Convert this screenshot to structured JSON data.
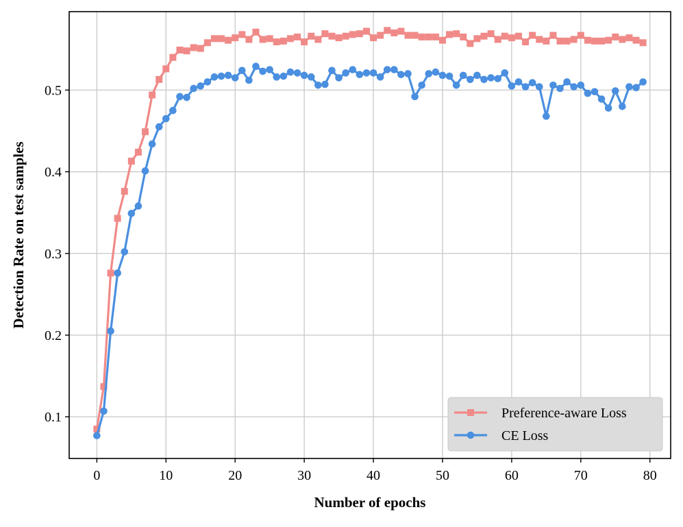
{
  "chart_data": {
    "type": "line",
    "title": "",
    "xlabel": "Number of epochs",
    "ylabel": "Detection Rate on test samples",
    "xlim": [
      -4,
      83
    ],
    "ylim": [
      0.049,
      0.596
    ],
    "x_ticks": [
      0,
      10,
      20,
      30,
      40,
      50,
      60,
      70,
      80
    ],
    "x_tick_labels": [
      "0",
      "10",
      "20",
      "30",
      "40",
      "50",
      "60",
      "70",
      "80"
    ],
    "y_ticks": [
      0.1,
      0.2,
      0.3,
      0.4,
      0.5
    ],
    "y_tick_labels": [
      "0.1",
      "0.2",
      "0.3",
      "0.4",
      "0.5"
    ],
    "grid": true,
    "legend_position": "bottom-right",
    "x": [
      0,
      1,
      2,
      3,
      4,
      5,
      6,
      7,
      8,
      9,
      10,
      11,
      12,
      13,
      14,
      15,
      16,
      17,
      18,
      19,
      20,
      21,
      22,
      23,
      24,
      25,
      26,
      27,
      28,
      29,
      30,
      31,
      32,
      33,
      34,
      35,
      36,
      37,
      38,
      39,
      40,
      41,
      42,
      43,
      44,
      45,
      46,
      47,
      48,
      49,
      50,
      51,
      52,
      53,
      54,
      55,
      56,
      57,
      58,
      59,
      60,
      61,
      62,
      63,
      64,
      65,
      66,
      67,
      68,
      69,
      70,
      71,
      72,
      73,
      74,
      75,
      76,
      77,
      78,
      79
    ],
    "series": [
      {
        "name": "Preference-aware Loss",
        "color": "#f08a88",
        "marker": "square",
        "values": [
          0.085,
          0.137,
          0.276,
          0.343,
          0.376,
          0.413,
          0.424,
          0.449,
          0.494,
          0.513,
          0.526,
          0.54,
          0.549,
          0.548,
          0.552,
          0.551,
          0.558,
          0.563,
          0.563,
          0.561,
          0.564,
          0.568,
          0.562,
          0.571,
          0.562,
          0.563,
          0.559,
          0.56,
          0.563,
          0.565,
          0.559,
          0.566,
          0.562,
          0.569,
          0.566,
          0.564,
          0.566,
          0.568,
          0.569,
          0.572,
          0.564,
          0.567,
          0.573,
          0.57,
          0.572,
          0.567,
          0.567,
          0.565,
          0.565,
          0.565,
          0.561,
          0.568,
          0.569,
          0.565,
          0.557,
          0.563,
          0.566,
          0.569,
          0.562,
          0.566,
          0.564,
          0.566,
          0.559,
          0.567,
          0.562,
          0.56,
          0.567,
          0.56,
          0.56,
          0.562,
          0.567,
          0.561,
          0.56,
          0.56,
          0.561,
          0.565,
          0.562,
          0.564,
          0.561,
          0.558
        ]
      },
      {
        "name": "CE Loss",
        "color": "#4a8fe0",
        "marker": "circle",
        "values": [
          0.077,
          0.107,
          0.205,
          0.276,
          0.302,
          0.349,
          0.358,
          0.401,
          0.434,
          0.455,
          0.465,
          0.475,
          0.492,
          0.491,
          0.502,
          0.505,
          0.51,
          0.516,
          0.517,
          0.518,
          0.515,
          0.524,
          0.512,
          0.529,
          0.523,
          0.525,
          0.516,
          0.517,
          0.522,
          0.521,
          0.518,
          0.516,
          0.506,
          0.507,
          0.524,
          0.515,
          0.521,
          0.525,
          0.519,
          0.521,
          0.521,
          0.516,
          0.525,
          0.525,
          0.519,
          0.52,
          0.492,
          0.506,
          0.52,
          0.522,
          0.518,
          0.517,
          0.506,
          0.518,
          0.513,
          0.518,
          0.513,
          0.515,
          0.514,
          0.521,
          0.505,
          0.51,
          0.504,
          0.509,
          0.504,
          0.468,
          0.506,
          0.502,
          0.51,
          0.504,
          0.506,
          0.496,
          0.498,
          0.489,
          0.478,
          0.499,
          0.48,
          0.504,
          0.503,
          0.51
        ]
      }
    ]
  }
}
